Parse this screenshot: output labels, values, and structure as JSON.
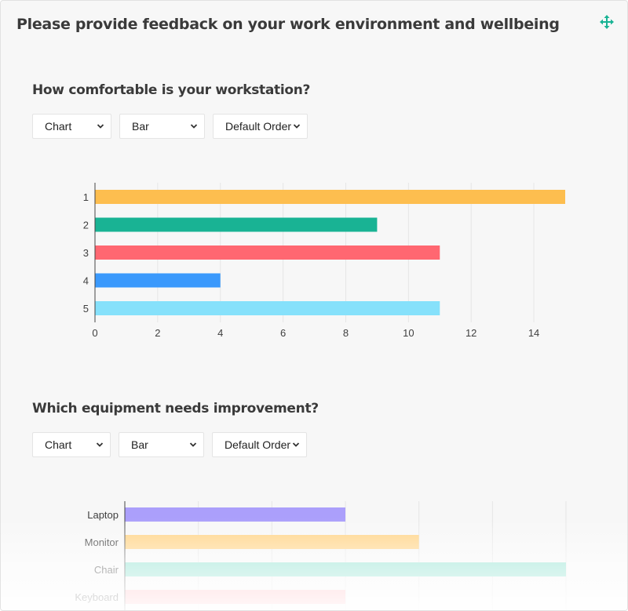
{
  "panel": {
    "title": "Please provide feedback on your work environment and wellbeing",
    "move_icon": "move-icon"
  },
  "questions": [
    {
      "title": "How comfortable is your workstation?",
      "controls": {
        "view": "Chart",
        "type": "Bar",
        "order": "Default Order"
      },
      "chart_data": {
        "type": "bar",
        "orientation": "horizontal",
        "categories": [
          "1",
          "2",
          "3",
          "4",
          "5"
        ],
        "values": [
          15,
          9,
          11,
          4,
          11
        ],
        "colors": [
          "#fdbe4f",
          "#19b394",
          "#ff6771",
          "#3a99fc",
          "#86e1fb"
        ],
        "xlim": [
          0,
          15
        ],
        "xticks": [
          "0",
          "2",
          "4",
          "6",
          "8",
          "10",
          "12",
          "14"
        ],
        "grid": true
      }
    },
    {
      "title": "Which equipment needs improvement?",
      "controls": {
        "view": "Chart",
        "type": "Bar",
        "order": "Default Order"
      },
      "chart_data": {
        "type": "bar",
        "orientation": "horizontal",
        "categories": [
          "Laptop",
          "Monitor",
          "Chair",
          "Keyboard"
        ],
        "values": [
          6,
          8,
          12,
          6
        ],
        "colors": [
          "#ab9ffb",
          "#ffd488",
          "#8ee1cf",
          "#ffb5bb"
        ],
        "xlim": [
          0,
          12
        ],
        "grid": true
      }
    }
  ]
}
